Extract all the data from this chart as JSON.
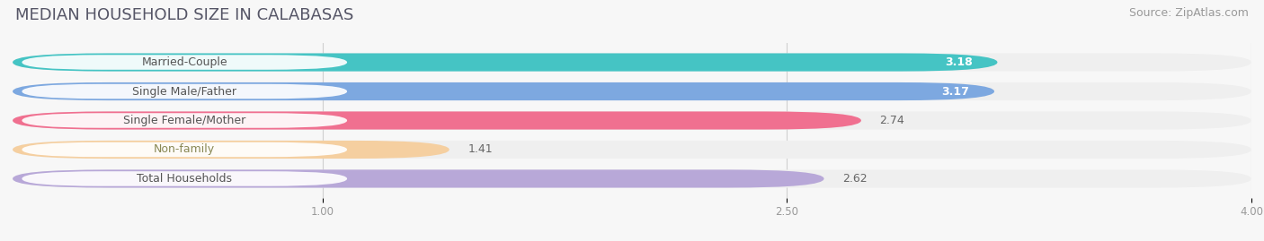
{
  "title": "MEDIAN HOUSEHOLD SIZE IN CALABASAS",
  "source": "Source: ZipAtlas.com",
  "categories": [
    "Married-Couple",
    "Single Male/Father",
    "Single Female/Mother",
    "Non-family",
    "Total Households"
  ],
  "values": [
    3.18,
    3.17,
    2.74,
    1.41,
    2.62
  ],
  "bar_colors": [
    "#45c4c4",
    "#7da8e0",
    "#f07090",
    "#f5cfa0",
    "#b8a8d8"
  ],
  "label_text_colors": [
    "#555555",
    "#555555",
    "#555555",
    "#888855",
    "#555555"
  ],
  "value_colors": [
    "white",
    "white",
    "#666666",
    "#666666",
    "#666666"
  ],
  "xlim_max": 4.0,
  "xticks": [
    1.0,
    2.5,
    4.0
  ],
  "title_fontsize": 13,
  "source_fontsize": 9,
  "label_fontsize": 9,
  "value_fontsize": 9,
  "background_color": "#f7f7f7",
  "bar_bg_color": "#e8e8e8",
  "row_bg_color": "#efefef"
}
